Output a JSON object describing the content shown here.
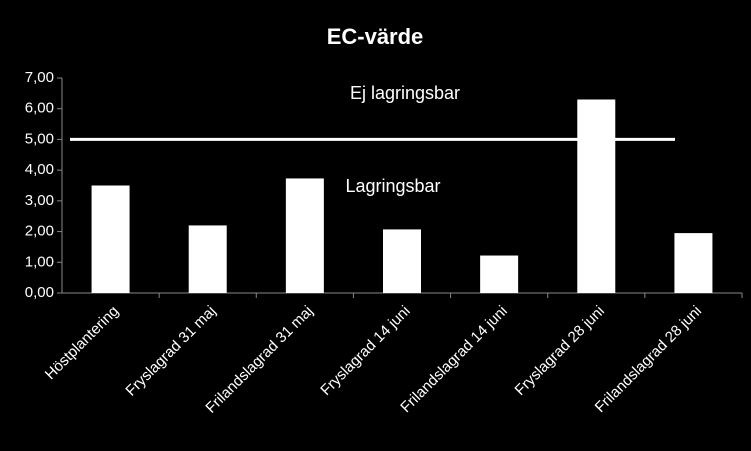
{
  "chart_data": {
    "type": "bar",
    "title": "EC-värde",
    "categories": [
      "Höstplantering",
      "Fryslagrad 31 maj",
      "Frilandslagrad 31 maj",
      "Fryslagrad 14 juni",
      "Frilandslagrad 14 juni",
      "Fryslagrad 28 juni",
      "Frilandslagrad 28 juni"
    ],
    "values": [
      3.5,
      2.2,
      3.73,
      2.07,
      1.22,
      6.3,
      1.95
    ],
    "color": "#ffffff",
    "ylim": [
      0,
      7
    ],
    "yticks": [
      {
        "value": 0,
        "label": "0,00"
      },
      {
        "value": 1,
        "label": "1,00"
      },
      {
        "value": 2,
        "label": "2,00"
      },
      {
        "value": 3,
        "label": "3,00"
      },
      {
        "value": 4,
        "label": "4,00"
      },
      {
        "value": 5,
        "label": "5,00"
      },
      {
        "value": 6,
        "label": "6,00"
      },
      {
        "value": 7,
        "label": "7,00"
      }
    ],
    "threshold": 5,
    "annotations": [
      "Ej lagringsbar",
      "Lagringsbar"
    ],
    "grid": false
  }
}
